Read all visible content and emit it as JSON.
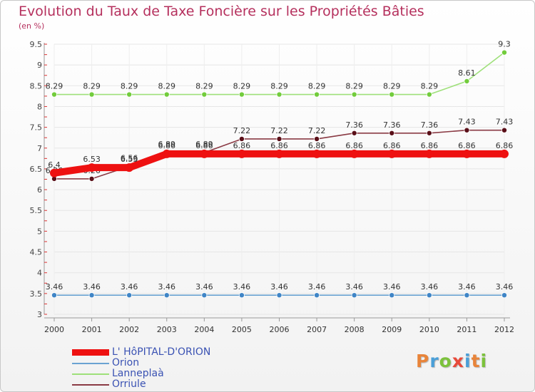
{
  "title": "Evolution du Taux de Taxe Foncière sur les Propriétés Bâties",
  "unit_label": "(en %)",
  "logo": {
    "text": "Proxiti",
    "colors": [
      "#e8843a",
      "#4a9fd8",
      "#7cc23c",
      "#e84a3a",
      "#4a9fd8",
      "#e8843a",
      "#7cc23c"
    ]
  },
  "chart_data": {
    "type": "line",
    "x": [
      "2000",
      "2001",
      "2002",
      "2003",
      "2004",
      "2005",
      "2006",
      "2007",
      "2008",
      "2009",
      "2010",
      "2011",
      "2012"
    ],
    "ylim": [
      3,
      9.5
    ],
    "yticks": [
      "3",
      "3.5",
      "4",
      "4.5",
      "5",
      "5.5",
      "6",
      "6.5",
      "7",
      "7.5",
      "8",
      "8.5",
      "9",
      "9.5"
    ],
    "grid": true,
    "legend_position": "bottom-left",
    "series": [
      {
        "name": "L' HôPITAL-D'ORION",
        "color": "#ee1111",
        "marker_color": "#ee1111",
        "width": "thick",
        "values": [
          6.4,
          6.53,
          6.53,
          6.86,
          6.86,
          6.86,
          6.86,
          6.86,
          6.86,
          6.86,
          6.86,
          6.86,
          6.86
        ],
        "labels": [
          "6.4",
          "6.53",
          "6.53",
          "6.86",
          "6.86",
          "6.86",
          "6.86",
          "6.86",
          "6.86",
          "6.86",
          "6.86",
          "6.86",
          "6.86"
        ]
      },
      {
        "name": "Orion",
        "color": "#6aa3d2",
        "marker_color": "#3f85c6",
        "width": "thin",
        "values": [
          3.46,
          3.46,
          3.46,
          3.46,
          3.46,
          3.46,
          3.46,
          3.46,
          3.46,
          3.46,
          3.46,
          3.46,
          3.46
        ],
        "labels": [
          "3.46",
          "3.46",
          "3.46",
          "3.46",
          "3.46",
          "3.46",
          "3.46",
          "3.46",
          "3.46",
          "3.46",
          "3.46",
          "3.46",
          "3.46"
        ]
      },
      {
        "name": "Lanneplaà",
        "color": "#9ee07a",
        "marker_color": "#72cc3c",
        "width": "thin",
        "values": [
          8.29,
          8.29,
          8.29,
          8.29,
          8.29,
          8.29,
          8.29,
          8.29,
          8.29,
          8.29,
          8.29,
          8.61,
          9.3
        ],
        "labels": [
          "8.29",
          "8.29",
          "8.29",
          "8.29",
          "8.29",
          "8.29",
          "8.29",
          "8.29",
          "8.29",
          "8.29",
          "8.29",
          "8.61",
          "9.3"
        ]
      },
      {
        "name": "Orriule",
        "color": "#8a3a44",
        "marker_color": "#5a0f18",
        "width": "thin",
        "values": [
          6.26,
          6.26,
          6.56,
          6.89,
          6.89,
          7.22,
          7.22,
          7.22,
          7.36,
          7.36,
          7.36,
          7.43,
          7.43
        ],
        "labels": [
          "6.26",
          "6.26",
          "6.56",
          "6.89",
          "6.89",
          "7.22",
          "7.22",
          "7.22",
          "7.36",
          "7.36",
          "7.36",
          "7.43",
          "7.43"
        ]
      }
    ]
  }
}
